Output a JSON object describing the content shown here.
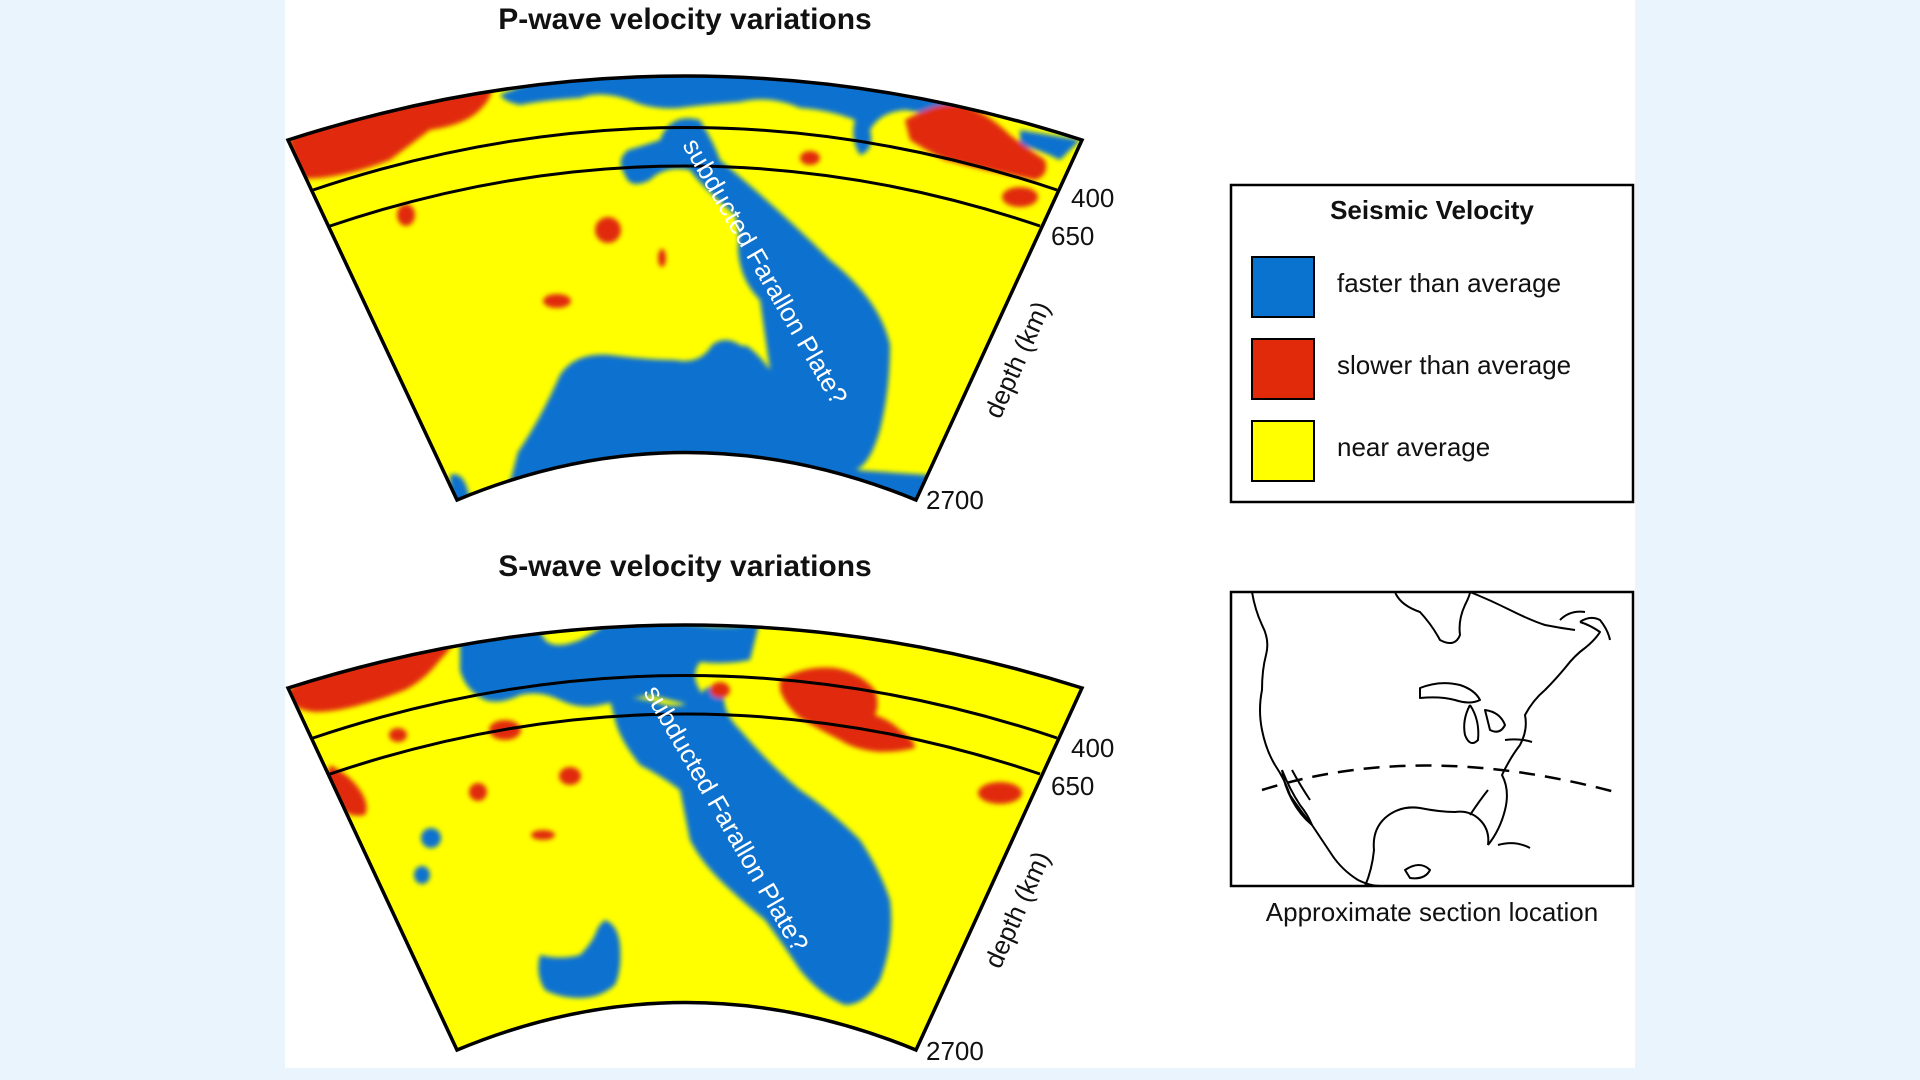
{
  "colors": {
    "background": "#eaf4fc",
    "fast": "#0a72cf",
    "slow": "#e12a0a",
    "near": "#ffff00",
    "outline": "#000000"
  },
  "sections": [
    {
      "title": "P-wave velocity variations",
      "depth_ticks": [
        "400",
        "650",
        "2700"
      ],
      "depth_axis_label": "depth (km)",
      "annotation": "subducted Farallon Plate?"
    },
    {
      "title": "S-wave velocity variations",
      "depth_ticks": [
        "400",
        "650",
        "2700"
      ],
      "depth_axis_label": "depth (km)",
      "annotation": "subducted Farallon Plate?"
    }
  ],
  "legend": {
    "title": "Seismic Velocity",
    "items": [
      {
        "label": "faster than average",
        "color": "#0a72cf"
      },
      {
        "label": "slower than average",
        "color": "#e12a0a"
      },
      {
        "label": "near average",
        "color": "#ffff00"
      }
    ]
  },
  "map": {
    "caption": "Approximate section location",
    "icon": "north-america-map-icon"
  }
}
